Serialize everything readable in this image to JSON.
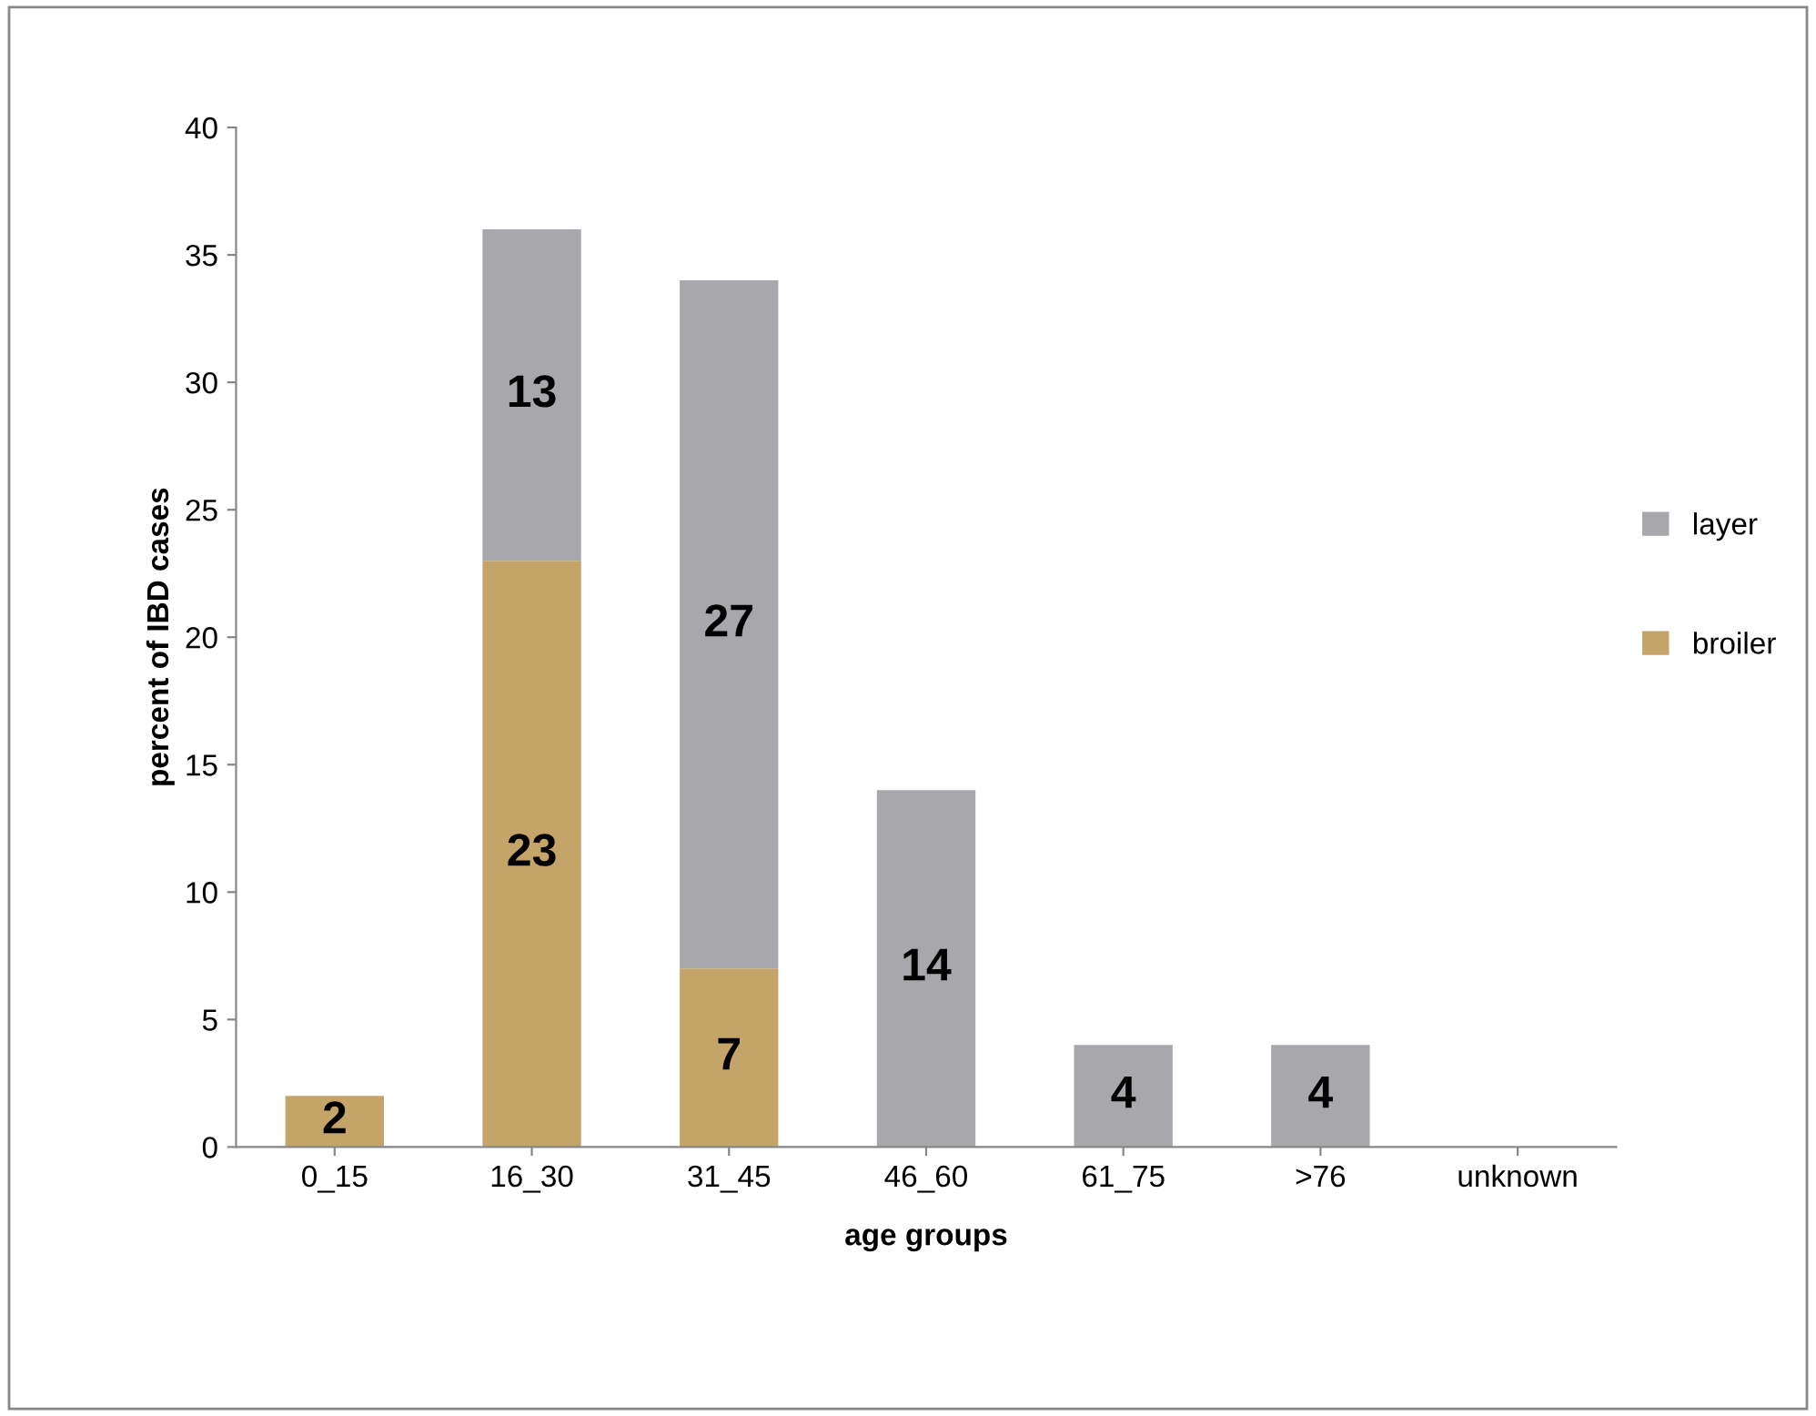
{
  "chart_data": {
    "type": "bar",
    "stacked": true,
    "xlabel": "age groups",
    "ylabel": "percent of IBD cases",
    "categories": [
      "0_15",
      "16_30",
      "31_45",
      "46_60",
      "61_75",
      ">76",
      "unknown"
    ],
    "series": [
      {
        "name": "broiler",
        "color": "#c4a468",
        "values": [
          2,
          23,
          7,
          null,
          null,
          null,
          null
        ]
      },
      {
        "name": "layer",
        "color": "#a8a8ac",
        "values": [
          null,
          13,
          27,
          14,
          4,
          4,
          null
        ]
      }
    ],
    "ylim": [
      0,
      40
    ],
    "yticks": [
      0,
      5,
      10,
      15,
      20,
      25,
      30,
      35,
      40
    ],
    "grid": false,
    "legend": "right",
    "data_labels": true
  }
}
